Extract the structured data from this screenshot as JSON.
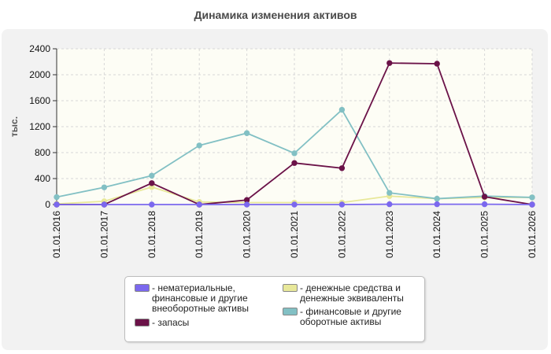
{
  "title": "Динамика изменения активов",
  "chart_data": {
    "type": "line",
    "title": "Динамика изменения активов",
    "ylabel": "тыс.",
    "xlabel": "",
    "ylim": [
      0,
      2400
    ],
    "yticks": [
      0,
      400,
      800,
      1200,
      1600,
      2000,
      2400
    ],
    "categories": [
      "01.01.2016",
      "01.01.2017",
      "01.01.2018",
      "01.01.2019",
      "01.01.2020",
      "01.01.2021",
      "01.01.2022",
      "01.01.2023",
      "01.01.2024",
      "01.01.2025",
      "01.01.2026"
    ],
    "grid": true,
    "legend_position": "bottom",
    "series": [
      {
        "name": "- нематериальные, финансовые и другие внеоборотные активы",
        "color": "#7b68ee",
        "values": [
          0,
          0,
          0,
          0,
          0,
          0,
          0,
          5,
          5,
          5,
          0
        ]
      },
      {
        "name": "- денежные средства и денежные эквиваленты",
        "color": "#e8e89a",
        "values": [
          10,
          50,
          270,
          40,
          30,
          30,
          30,
          130,
          90,
          110,
          110
        ]
      },
      {
        "name": "- запасы",
        "color": "#6b1248",
        "values": [
          0,
          0,
          330,
          0,
          70,
          640,
          560,
          2180,
          2170,
          120,
          0
        ]
      },
      {
        "name": "- финансовые и другие оборотные активы",
        "color": "#82c0c4",
        "values": [
          115,
          265,
          445,
          910,
          1100,
          790,
          1460,
          180,
          90,
          130,
          110
        ]
      }
    ]
  }
}
